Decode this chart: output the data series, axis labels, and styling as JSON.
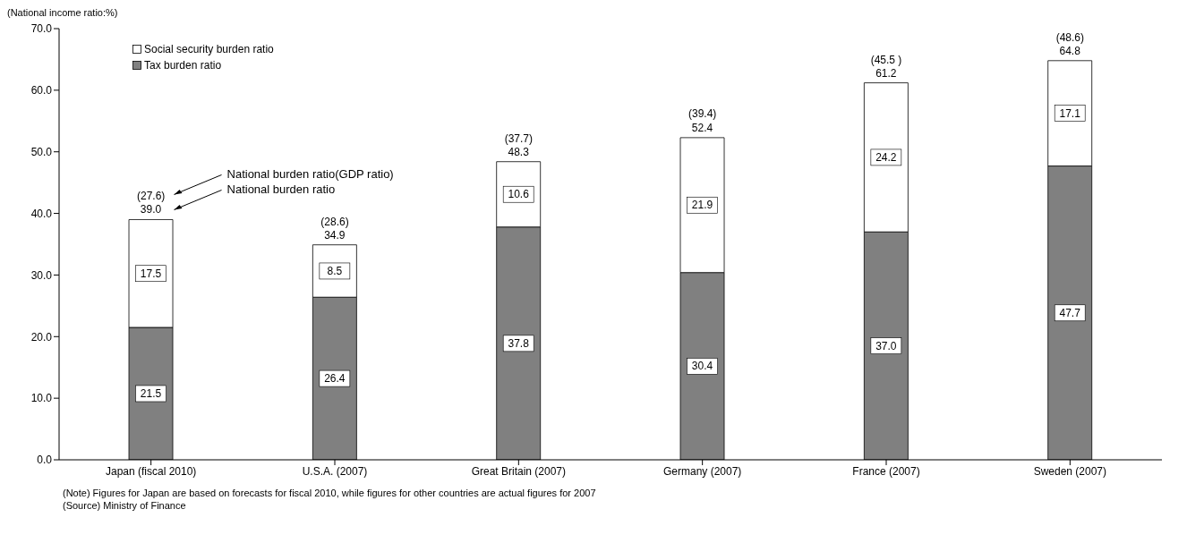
{
  "chart_data": {
    "type": "bar",
    "stacked": true,
    "ylabel": "(National income ratio:%)",
    "categories": [
      "Japan (fiscal 2010)",
      "U.S.A. (2007)",
      "Great Britain (2007)",
      "Germany (2007)",
      "France (2007)",
      "Sweden (2007)"
    ],
    "series": [
      {
        "name": "Tax burden ratio",
        "color": "#808080",
        "values": [
          21.5,
          26.4,
          37.8,
          30.4,
          37.0,
          47.7
        ],
        "value_labels": [
          "21.5",
          "26.4",
          "37.8",
          "30.4",
          "37.0",
          "47.7"
        ]
      },
      {
        "name": "Social security burden ratio",
        "color": "#ffffff",
        "values": [
          17.5,
          8.5,
          10.6,
          21.9,
          24.2,
          17.1
        ],
        "value_labels": [
          "17.5",
          "8.5",
          "10.6",
          "21.9",
          "24.2",
          "17.1"
        ]
      }
    ],
    "totals": [
      "39.0",
      "34.9",
      "48.3",
      "52.4",
      "61.2",
      "64.8"
    ],
    "ylim": [
      0,
      70
    ],
    "yticks": [
      {
        "value": 0,
        "label": "0.0"
      },
      {
        "value": 10,
        "label": "10.0"
      },
      {
        "value": 20,
        "label": "20.0"
      },
      {
        "value": 30,
        "label": "30.0"
      },
      {
        "value": 40,
        "label": "40.0"
      },
      {
        "value": 50,
        "label": "50.0"
      },
      {
        "value": 60,
        "label": "60.0"
      },
      {
        "value": 70,
        "label": "70.0"
      }
    ],
    "grid": false,
    "legend": "top left",
    "annotations": [
      {
        "text": "(27.6)",
        "x": "Japan (fiscal 2010)",
        "y": 39.0
      },
      {
        "text": "(28.6)",
        "x": "U.S.A. (2007)",
        "y": 34.9
      },
      {
        "text": "(37.7)",
        "x": "Great Britain (2007)",
        "y": 48.3
      },
      {
        "text": "(39.4)",
        "x": "Germany (2007)",
        "y": 52.4
      },
      {
        "text": "(45.5 )",
        "x": "France (2007)",
        "y": 61.2
      },
      {
        "text": "(48.6)",
        "x": "Sweden (2007)",
        "y": 64.8
      },
      "National burden ratio(GDP ratio)",
      "National burden ratio",
      "(Note) Figures for Japan are based on forecasts for fiscal 2010, while figures for other countries are actual figures for 2007",
      "(Source) Ministry of Finance"
    ]
  }
}
